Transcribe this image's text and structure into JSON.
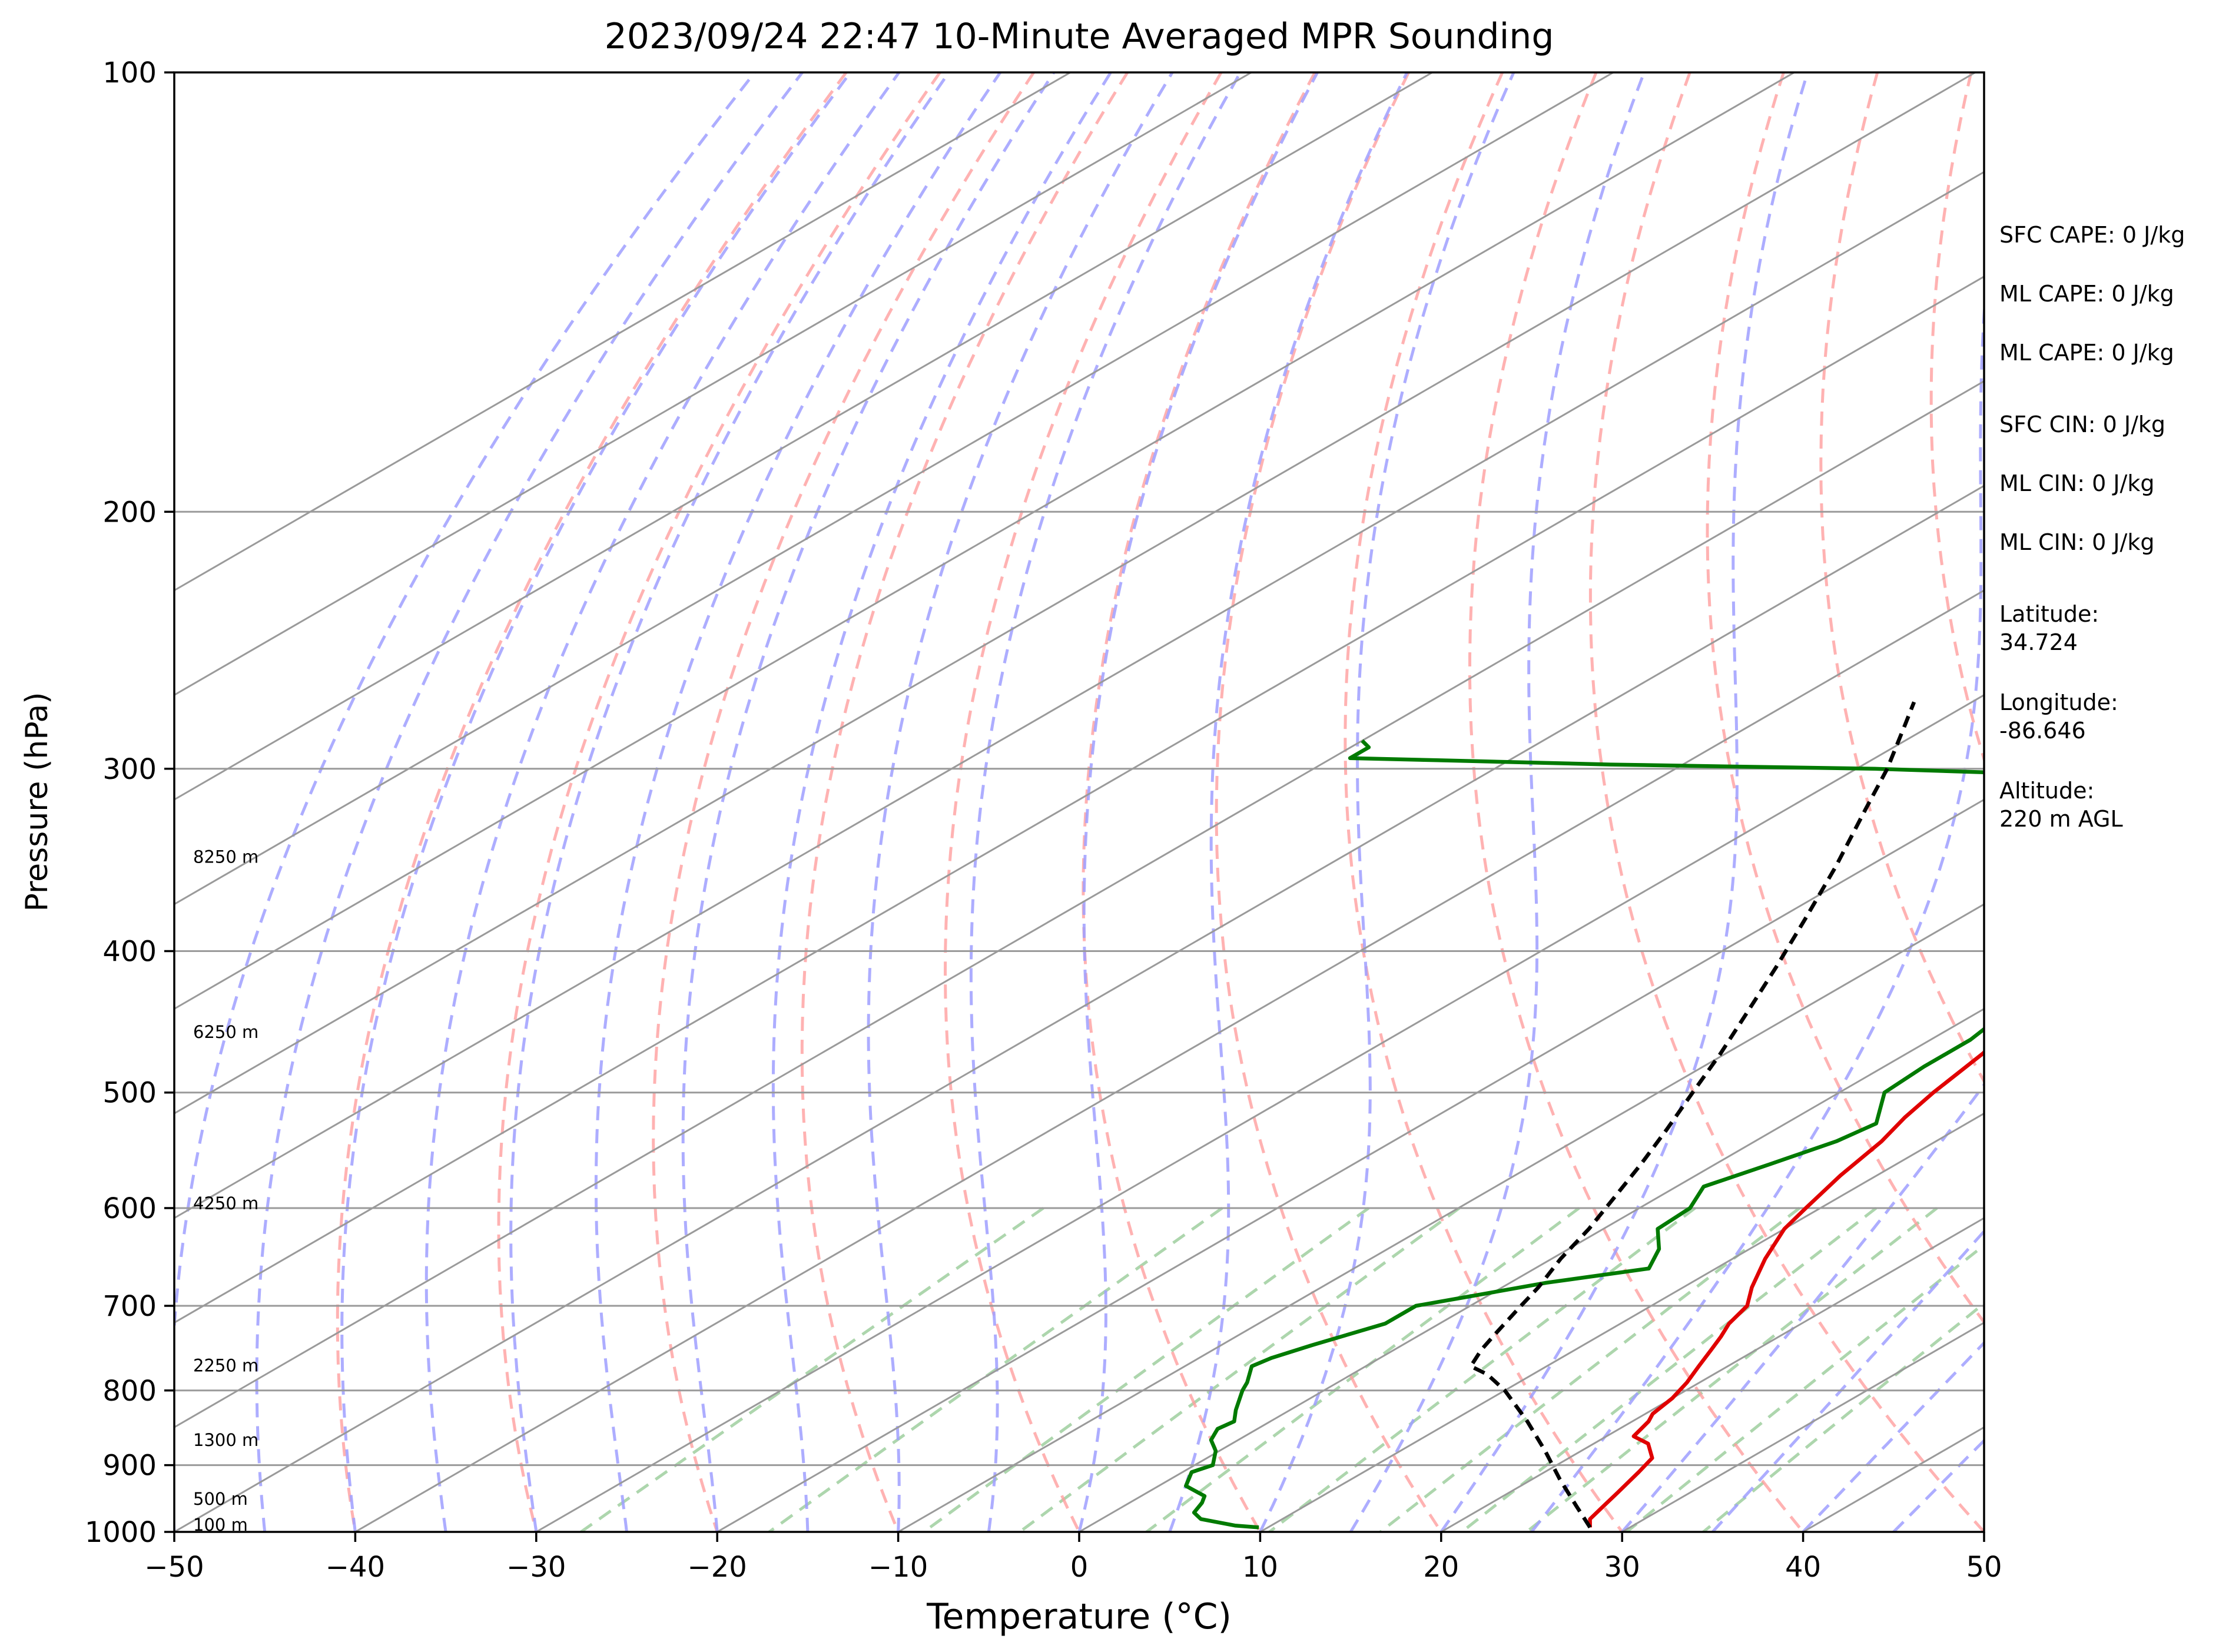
{
  "chart_data": {
    "type": "line",
    "title": "2023/09/24 22:47 10-Minute Averaged MPR Sounding",
    "xlabel": "Temperature (°C)",
    "ylabel": "Pressure (hPa)",
    "xlim": [
      -50,
      50
    ],
    "ylim": [
      1000,
      100
    ],
    "y_scale": "log",
    "skew": "skew-T",
    "grid": true,
    "x_ticks": [
      "−50",
      "−40",
      "−30",
      "−20",
      "−10",
      "0",
      "10",
      "20",
      "30",
      "40",
      "50"
    ],
    "x_tick_values": [
      -50,
      -40,
      -30,
      -20,
      -10,
      0,
      10,
      20,
      30,
      40,
      50
    ],
    "y_ticks": [
      "100",
      "200",
      "300",
      "400",
      "500",
      "600",
      "700",
      "800",
      "900",
      "1000"
    ],
    "y_tick_values": [
      100,
      200,
      300,
      400,
      500,
      600,
      700,
      800,
      900,
      1000
    ],
    "height_labels": [
      {
        "text": "8250 m",
        "p": 345
      },
      {
        "text": "6250 m",
        "p": 455
      },
      {
        "text": "4250 m",
        "p": 596
      },
      {
        "text": "2250 m",
        "p": 770
      },
      {
        "text": "1300 m",
        "p": 866
      },
      {
        "text": "500 m",
        "p": 950
      },
      {
        "text": "100 m",
        "p": 990
      }
    ],
    "annotations": [
      [
        "SFC CAPE: 0 J/kg"
      ],
      [
        "ML CAPE: 0 J/kg"
      ],
      [
        "ML CAPE: 0 J/kg"
      ],
      [
        "SFC CIN: 0 J/kg"
      ],
      [
        "ML CIN: 0 J/kg"
      ],
      [
        "ML CIN: 0 J/kg"
      ],
      [
        "Latitude:",
        "34.724"
      ],
      [
        "Longitude:",
        "-86.646"
      ],
      [
        "Altitude:",
        "220 m AGL"
      ]
    ],
    "colors": {
      "temperature": "#e00000",
      "dewpoint": "#007a00",
      "parcel": "#000000",
      "dry_adiabat": "#ff9f9f",
      "moist_adiabat": "#9f9fff",
      "mixing_ratio": "#9fcf9f",
      "isotherm": "#9a9a9a"
    },
    "series": [
      {
        "key": "temperature",
        "values": [
          [
            993,
            27.8
          ],
          [
            980,
            27.0
          ],
          [
            960,
            26.5
          ],
          [
            940,
            26.0
          ],
          [
            910,
            25.2
          ],
          [
            890,
            24.6
          ],
          [
            870,
            23.0
          ],
          [
            860,
            21.5
          ],
          [
            840,
            20.9
          ],
          [
            830,
            20.4
          ],
          [
            810,
            20.0
          ],
          [
            790,
            19.3
          ],
          [
            770,
            18.4
          ],
          [
            750,
            17.5
          ],
          [
            735,
            16.8
          ],
          [
            720,
            16.0
          ],
          [
            700,
            15.3
          ],
          [
            680,
            13.8
          ],
          [
            650,
            11.8
          ],
          [
            620,
            10.0
          ],
          [
            600,
            9.2
          ],
          [
            570,
            8.0
          ],
          [
            540,
            7.0
          ],
          [
            520,
            6.0
          ],
          [
            500,
            5.2
          ],
          [
            470,
            4.2
          ],
          [
            450,
            3.1
          ],
          [
            430,
            2.2
          ],
          [
            400,
            1.0
          ],
          [
            380,
            -0.8
          ],
          [
            360,
            -2.6
          ],
          [
            345,
            -4.0
          ],
          [
            330,
            -5.5
          ],
          [
            315,
            -7.0
          ],
          [
            300,
            -8.5
          ],
          [
            290,
            -9.8
          ],
          [
            275,
            -12.0
          ]
        ]
      },
      {
        "key": "dewpoint",
        "values": [
          [
            993,
            9.5
          ],
          [
            990,
            8.0
          ],
          [
            980,
            5.5
          ],
          [
            970,
            4.5
          ],
          [
            955,
            4.0
          ],
          [
            945,
            3.5
          ],
          [
            930,
            1.5
          ],
          [
            910,
            0.5
          ],
          [
            900,
            1.0
          ],
          [
            880,
            -0.2
          ],
          [
            865,
            -1.5
          ],
          [
            850,
            -2.2
          ],
          [
            840,
            -2.0
          ],
          [
            825,
            -3.0
          ],
          [
            800,
            -4.5
          ],
          [
            790,
            -5.0
          ],
          [
            770,
            -6.3
          ],
          [
            760,
            -6.0
          ],
          [
            745,
            -5.0
          ],
          [
            720,
            -3.0
          ],
          [
            700,
            -3.0
          ],
          [
            690,
            -1.0
          ],
          [
            675,
            2.0
          ],
          [
            660,
            6.3
          ],
          [
            640,
            5.0
          ],
          [
            620,
            3.0
          ],
          [
            600,
            2.8
          ],
          [
            580,
            1.5
          ],
          [
            560,
            3.0
          ],
          [
            540,
            4.5
          ],
          [
            525,
            5.0
          ],
          [
            500,
            2.5
          ],
          [
            480,
            2.2
          ],
          [
            460,
            2.2
          ],
          [
            440,
            1.5
          ],
          [
            420,
            0.2
          ],
          [
            400,
            -1.5
          ],
          [
            380,
            -3.0
          ],
          [
            370,
            -3.1
          ],
          [
            360,
            -1.5
          ],
          [
            350,
            -6.0
          ],
          [
            340,
            -5.0
          ],
          [
            330,
            -8.3
          ],
          [
            325,
            -10.2
          ],
          [
            320,
            -9.5
          ],
          [
            312,
            -6.5
          ],
          [
            303,
            -17.5
          ],
          [
            300,
            -29.0
          ],
          [
            298,
            -44.0
          ],
          [
            296,
            -54.0
          ],
          [
            295,
            -59.0
          ],
          [
            290,
            -59.0
          ],
          [
            287,
            -60.0
          ]
        ]
      },
      {
        "key": "parcel",
        "values": [
          [
            993,
            27.8
          ],
          [
            960,
            25.0
          ],
          [
            920,
            21.5
          ],
          [
            880,
            18.0
          ],
          [
            840,
            14.2
          ],
          [
            800,
            10.0
          ],
          [
            780,
            7.5
          ],
          [
            770,
            5.8
          ],
          [
            750,
            4.8
          ],
          [
            730,
            4.0
          ],
          [
            700,
            2.8
          ],
          [
            680,
            2.0
          ],
          [
            650,
            0.5
          ],
          [
            620,
            -0.8
          ],
          [
            590,
            -2.4
          ],
          [
            560,
            -4.1
          ],
          [
            530,
            -6.0
          ],
          [
            500,
            -8.1
          ],
          [
            470,
            -10.3
          ],
          [
            440,
            -12.8
          ],
          [
            410,
            -15.5
          ],
          [
            380,
            -18.5
          ],
          [
            350,
            -21.8
          ],
          [
            320,
            -25.6
          ],
          [
            300,
            -28.3
          ],
          [
            280,
            -31.5
          ],
          [
            270,
            -33.2
          ]
        ]
      }
    ]
  }
}
